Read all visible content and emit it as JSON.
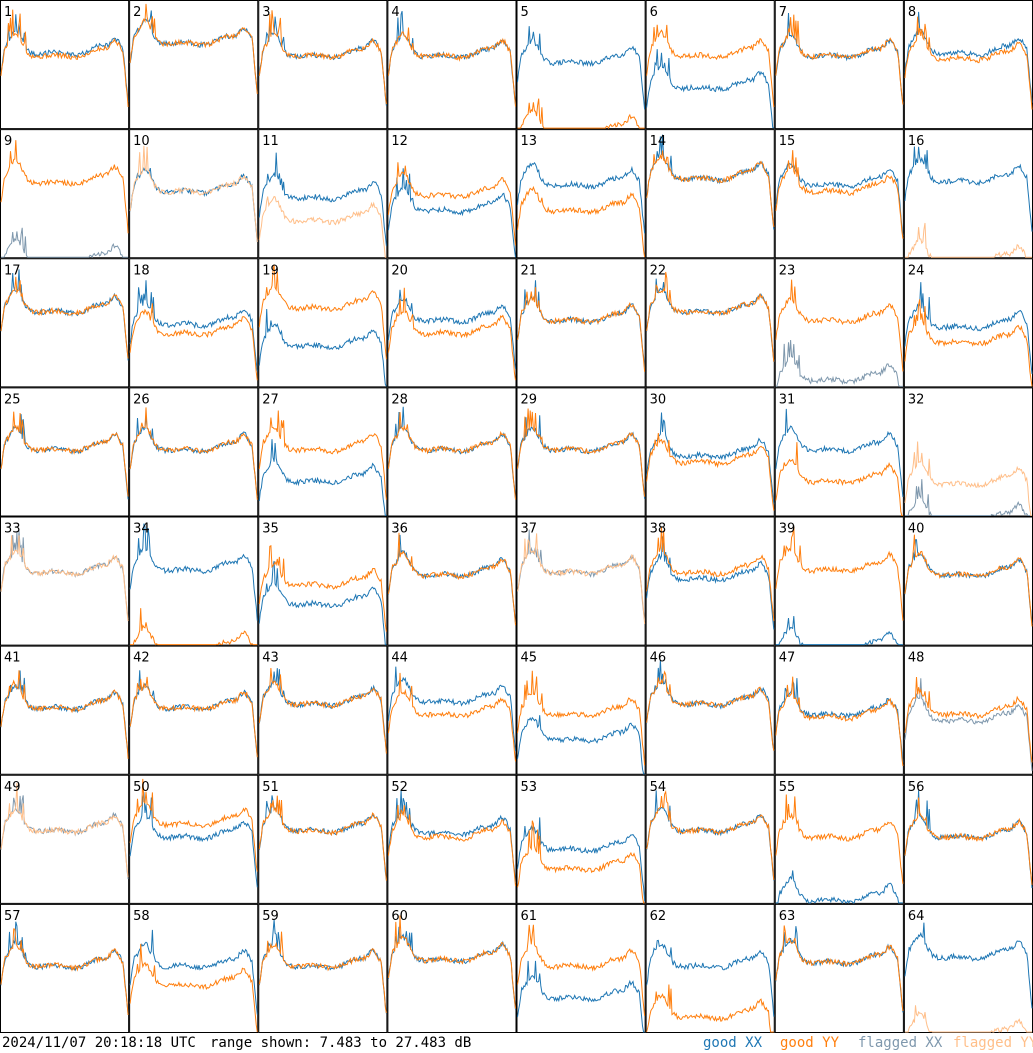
{
  "footer": {
    "timestamp": "2024/11/07 20:18:18 UTC",
    "range": "range shown: 7.483 to 27.483 dB"
  },
  "legend": [
    {
      "label": "good XX",
      "color": "#1f77b4"
    },
    {
      "label": "good YY",
      "color": "#ff7f0e"
    },
    {
      "label": "flagged XX",
      "color": "#7f98ad"
    },
    {
      "label": "flagged YY",
      "color": "#ffbf8a"
    }
  ],
  "chart_data": {
    "type": "line",
    "layout": "8x8 small multiples",
    "ylim_db": [
      7.483,
      27.483
    ],
    "panels": [
      {
        "label": "1",
        "xx": "good",
        "yy": "good",
        "xx_level": 0.62,
        "yy_level": 0.6
      },
      {
        "label": "2",
        "xx": "good",
        "yy": "good",
        "xx_level": 0.7,
        "yy_level": 0.7
      },
      {
        "label": "3",
        "xx": "good",
        "yy": "good",
        "xx_level": 0.6,
        "yy_level": 0.6
      },
      {
        "label": "4",
        "xx": "good",
        "yy": "good",
        "xx_level": 0.6,
        "yy_level": 0.6
      },
      {
        "label": "5",
        "xx": "good",
        "yy": "good",
        "xx_level": 0.55,
        "yy_level": 0.0
      },
      {
        "label": "6",
        "xx": "good",
        "yy": "good",
        "xx_level": 0.35,
        "yy_level": 0.6
      },
      {
        "label": "7",
        "xx": "good",
        "yy": "good",
        "xx_level": 0.6,
        "yy_level": 0.6
      },
      {
        "label": "8",
        "xx": "good",
        "yy": "good",
        "xx_level": 0.62,
        "yy_level": 0.58
      },
      {
        "label": "9",
        "xx": "flagged",
        "yy": "good",
        "xx_level": 0.0,
        "yy_level": 0.62
      },
      {
        "label": "10",
        "xx": "good",
        "yy": "flagged",
        "xx_level": 0.55,
        "yy_level": 0.55
      },
      {
        "label": "11",
        "xx": "good",
        "yy": "flagged",
        "xx_level": 0.5,
        "yy_level": 0.32
      },
      {
        "label": "12",
        "xx": "good",
        "yy": "good",
        "xx_level": 0.4,
        "yy_level": 0.52
      },
      {
        "label": "13",
        "xx": "good",
        "yy": "good",
        "xx_level": 0.6,
        "yy_level": 0.4
      },
      {
        "label": "14",
        "xx": "good",
        "yy": "good",
        "xx_level": 0.65,
        "yy_level": 0.65
      },
      {
        "label": "15",
        "xx": "good",
        "yy": "good",
        "xx_level": 0.6,
        "yy_level": 0.55
      },
      {
        "label": "16",
        "xx": "good",
        "yy": "flagged",
        "xx_level": 0.63,
        "yy_level": 0.0
      },
      {
        "label": "17",
        "xx": "good",
        "yy": "good",
        "xx_level": 0.62,
        "yy_level": 0.62
      },
      {
        "label": "18",
        "xx": "good",
        "yy": "good",
        "xx_level": 0.52,
        "yy_level": 0.45
      },
      {
        "label": "19",
        "xx": "good",
        "yy": "good",
        "xx_level": 0.35,
        "yy_level": 0.65
      },
      {
        "label": "20",
        "xx": "good",
        "yy": "good",
        "xx_level": 0.55,
        "yy_level": 0.45
      },
      {
        "label": "21",
        "xx": "good",
        "yy": "good",
        "xx_level": 0.55,
        "yy_level": 0.55
      },
      {
        "label": "22",
        "xx": "good",
        "yy": "good",
        "xx_level": 0.62,
        "yy_level": 0.62
      },
      {
        "label": "23",
        "xx": "flagged",
        "yy": "good",
        "xx_level": 0.08,
        "yy_level": 0.55
      },
      {
        "label": "24",
        "xx": "good",
        "yy": "good",
        "xx_level": 0.5,
        "yy_level": 0.38
      },
      {
        "label": "25",
        "xx": "good",
        "yy": "good",
        "xx_level": 0.55,
        "yy_level": 0.55
      },
      {
        "label": "26",
        "xx": "good",
        "yy": "good",
        "xx_level": 0.55,
        "yy_level": 0.55
      },
      {
        "label": "27",
        "xx": "good",
        "yy": "good",
        "xx_level": 0.3,
        "yy_level": 0.55
      },
      {
        "label": "28",
        "xx": "good",
        "yy": "good",
        "xx_level": 0.55,
        "yy_level": 0.55
      },
      {
        "label": "29",
        "xx": "good",
        "yy": "good",
        "xx_level": 0.55,
        "yy_level": 0.55
      },
      {
        "label": "30",
        "xx": "good",
        "yy": "good",
        "xx_level": 0.5,
        "yy_level": 0.45
      },
      {
        "label": "31",
        "xx": "good",
        "yy": "good",
        "xx_level": 0.55,
        "yy_level": 0.3
      },
      {
        "label": "32",
        "xx": "flagged",
        "yy": "flagged",
        "xx_level": 0.0,
        "yy_level": 0.28
      },
      {
        "label": "33",
        "xx": "flagged",
        "yy": "flagged",
        "xx_level": 0.6,
        "yy_level": 0.6
      },
      {
        "label": "34",
        "xx": "good",
        "yy": "good",
        "xx_level": 0.62,
        "yy_level": 0.0
      },
      {
        "label": "35",
        "xx": "good",
        "yy": "good",
        "xx_level": 0.35,
        "yy_level": 0.5
      },
      {
        "label": "36",
        "xx": "good",
        "yy": "good",
        "xx_level": 0.58,
        "yy_level": 0.58
      },
      {
        "label": "37",
        "xx": "flagged",
        "yy": "flagged",
        "xx_level": 0.6,
        "yy_level": 0.6
      },
      {
        "label": "38",
        "xx": "good",
        "yy": "good",
        "xx_level": 0.55,
        "yy_level": 0.6
      },
      {
        "label": "39",
        "xx": "good",
        "yy": "good",
        "xx_level": 0.0,
        "yy_level": 0.62
      },
      {
        "label": "40",
        "xx": "good",
        "yy": "good",
        "xx_level": 0.58,
        "yy_level": 0.58
      },
      {
        "label": "41",
        "xx": "good",
        "yy": "good",
        "xx_level": 0.55,
        "yy_level": 0.55
      },
      {
        "label": "42",
        "xx": "good",
        "yy": "good",
        "xx_level": 0.55,
        "yy_level": 0.55
      },
      {
        "label": "43",
        "xx": "good",
        "yy": "good",
        "xx_level": 0.58,
        "yy_level": 0.58
      },
      {
        "label": "44",
        "xx": "good",
        "yy": "good",
        "xx_level": 0.6,
        "yy_level": 0.5
      },
      {
        "label": "45",
        "xx": "good",
        "yy": "good",
        "xx_level": 0.3,
        "yy_level": 0.5
      },
      {
        "label": "46",
        "xx": "good",
        "yy": "good",
        "xx_level": 0.58,
        "yy_level": 0.58
      },
      {
        "label": "47",
        "xx": "good",
        "yy": "good",
        "xx_level": 0.5,
        "yy_level": 0.48
      },
      {
        "label": "48",
        "xx": "flagged",
        "yy": "good",
        "xx_level": 0.45,
        "yy_level": 0.5
      },
      {
        "label": "49",
        "xx": "flagged",
        "yy": "flagged",
        "xx_level": 0.6,
        "yy_level": 0.6
      },
      {
        "label": "50",
        "xx": "good",
        "yy": "good",
        "xx_level": 0.55,
        "yy_level": 0.65
      },
      {
        "label": "51",
        "xx": "good",
        "yy": "good",
        "xx_level": 0.6,
        "yy_level": 0.6
      },
      {
        "label": "52",
        "xx": "good",
        "yy": "good",
        "xx_level": 0.58,
        "yy_level": 0.55
      },
      {
        "label": "53",
        "xx": "good",
        "yy": "good",
        "xx_level": 0.45,
        "yy_level": 0.3
      },
      {
        "label": "54",
        "xx": "good",
        "yy": "good",
        "xx_level": 0.6,
        "yy_level": 0.6
      },
      {
        "label": "55",
        "xx": "good",
        "yy": "good",
        "xx_level": 0.05,
        "yy_level": 0.55
      },
      {
        "label": "56",
        "xx": "good",
        "yy": "good",
        "xx_level": 0.55,
        "yy_level": 0.55
      },
      {
        "label": "57",
        "xx": "good",
        "yy": "good",
        "xx_level": 0.55,
        "yy_level": 0.55
      },
      {
        "label": "58",
        "xx": "good",
        "yy": "good",
        "xx_level": 0.55,
        "yy_level": 0.4
      },
      {
        "label": "59",
        "xx": "good",
        "yy": "good",
        "xx_level": 0.55,
        "yy_level": 0.55
      },
      {
        "label": "60",
        "xx": "good",
        "yy": "good",
        "xx_level": 0.6,
        "yy_level": 0.6
      },
      {
        "label": "61",
        "xx": "good",
        "yy": "good",
        "xx_level": 0.3,
        "yy_level": 0.55
      },
      {
        "label": "62",
        "xx": "good",
        "yy": "good",
        "xx_level": 0.55,
        "yy_level": 0.15
      },
      {
        "label": "63",
        "xx": "good",
        "yy": "good",
        "xx_level": 0.58,
        "yy_level": 0.58
      },
      {
        "label": "64",
        "xx": "good",
        "yy": "flagged",
        "xx_level": 0.62,
        "yy_level": 0.0
      }
    ]
  }
}
